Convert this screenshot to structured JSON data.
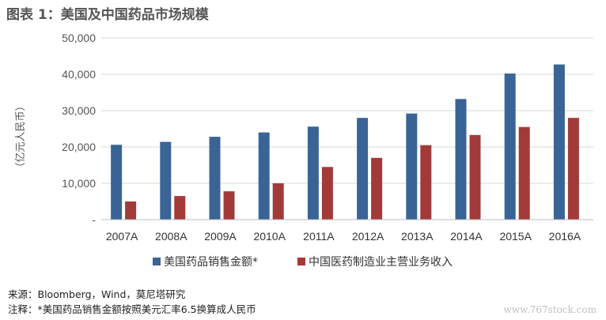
{
  "title": "图表 1：美国及中国药品市场规模",
  "footer": {
    "source": "来源：Bloomberg，Wind，莫尼塔研究",
    "note": "注释：*美国药品销售金额按照美元汇率6.5换算成人民币"
  },
  "watermark": "www.767stock.com",
  "chart_data": {
    "type": "bar",
    "title": "图表 1：美国及中国药品市场规模",
    "ylabel": "（亿元人民币）",
    "xlabel": "",
    "ylim": [
      0,
      50000
    ],
    "yticks": [
      0,
      10000,
      20000,
      30000,
      40000,
      50000
    ],
    "ytick_labels": [
      "-",
      "10,000",
      "20,000",
      "30,000",
      "40,000",
      "50,000"
    ],
    "categories": [
      "2007A",
      "2008A",
      "2009A",
      "2010A",
      "2011A",
      "2012A",
      "2013A",
      "2014A",
      "2015A",
      "2016A"
    ],
    "series": [
      {
        "name": "美国药品销售金额*",
        "color": "#3A6496",
        "values": [
          20600,
          21400,
          22800,
          24000,
          25600,
          28000,
          29200,
          33200,
          40200,
          42700
        ]
      },
      {
        "name": "中国医药制造业主营业务收入",
        "color": "#A33A3A",
        "values": [
          5000,
          6500,
          7800,
          10000,
          14500,
          17000,
          20500,
          23300,
          25500,
          28000
        ]
      }
    ],
    "grid": true,
    "legend_position": "bottom"
  }
}
